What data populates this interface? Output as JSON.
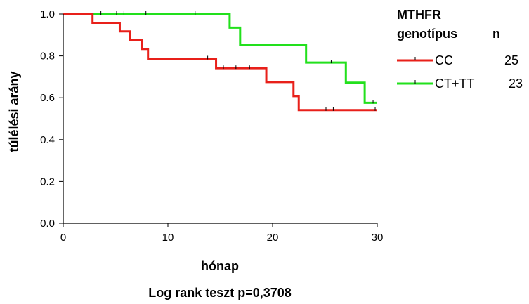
{
  "chart_data": {
    "type": "line",
    "step": true,
    "xlabel": "hónap",
    "ylabel": "túlélési arány",
    "footnote": "Log rank teszt p=0,3708",
    "xlim": [
      0,
      30
    ],
    "ylim": [
      0,
      1.0
    ],
    "x_ticks": [
      "0",
      "10",
      "20",
      "30"
    ],
    "y_ticks": [
      "0.0",
      "0.2",
      "0.4",
      "0.6",
      "0.8",
      "1.0"
    ],
    "legend": {
      "title_line1": "MTHFR",
      "title_line2": "genotípus",
      "count_header": "n",
      "position": "top-right"
    },
    "series": [
      {
        "name": "CC",
        "n": "25",
        "color": "#e8201a",
        "steps": [
          [
            0,
            1.0
          ],
          [
            2.8,
            0.958
          ],
          [
            5.4,
            0.917
          ],
          [
            6.4,
            0.875
          ],
          [
            7.5,
            0.833
          ],
          [
            8.1,
            0.787
          ],
          [
            14.6,
            0.741
          ],
          [
            19.4,
            0.675
          ],
          [
            22.0,
            0.608
          ],
          [
            22.5,
            0.541
          ],
          [
            30,
            0.541
          ]
        ],
        "censored": [
          [
            13.8,
            0.787
          ],
          [
            15.3,
            0.741
          ],
          [
            16.5,
            0.741
          ],
          [
            17.8,
            0.741
          ],
          [
            25.1,
            0.541
          ],
          [
            25.8,
            0.541
          ],
          [
            29.8,
            0.541
          ]
        ]
      },
      {
        "name": "CT+TT",
        "n": "23",
        "color": "#22e01c",
        "steps": [
          [
            0,
            1.0
          ],
          [
            15.9,
            0.935
          ],
          [
            16.9,
            0.853
          ],
          [
            23.2,
            0.768
          ],
          [
            27.0,
            0.672
          ],
          [
            28.8,
            0.576
          ],
          [
            30,
            0.576
          ]
        ],
        "censored": [
          [
            3.6,
            1.0
          ],
          [
            5.1,
            1.0
          ],
          [
            5.8,
            1.0
          ],
          [
            7.9,
            1.0
          ],
          [
            12.6,
            1.0
          ],
          [
            25.6,
            0.768
          ],
          [
            29.6,
            0.576
          ]
        ]
      }
    ]
  }
}
